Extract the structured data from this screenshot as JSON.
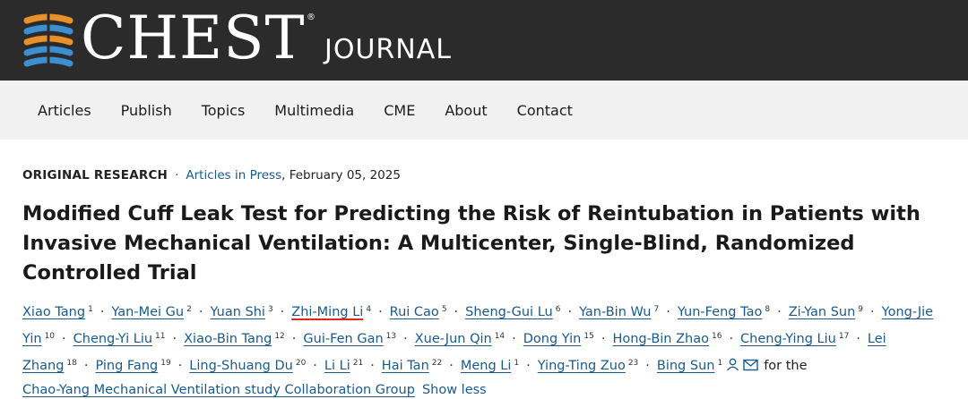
{
  "header": {
    "logo_main": "CHEST",
    "logo_registered": "®",
    "logo_sub": "JOURNAL",
    "logo_icon": "chest-journal-logo-icon",
    "colors": {
      "bar": "#2b2b2b",
      "blue": "#3d8fd0",
      "orange": "#e8902a"
    }
  },
  "nav": {
    "items": [
      "Articles",
      "Publish",
      "Topics",
      "Multimedia",
      "CME",
      "About",
      "Contact"
    ]
  },
  "meta": {
    "type": "ORIGINAL RESEARCH",
    "separator": "·",
    "section": "Articles in Press",
    "date": ", February 05, 2025"
  },
  "title": "Modified Cuff Leak Test for Predicting the Risk of Reintubation in Patients with Invasive Mechanical Ventilation: A Multicenter, Single-Blind, Randomized Controlled Trial",
  "authors": [
    {
      "name": "Xiao Tang",
      "sup": "1"
    },
    {
      "name": "Yan-Mei Gu",
      "sup": "2"
    },
    {
      "name": "Yuan Shi",
      "sup": "3"
    },
    {
      "name": "Zhi-Ming Li",
      "sup": "4",
      "highlight": true
    },
    {
      "name": "Rui Cao",
      "sup": "5"
    },
    {
      "name": "Sheng-Gui Lu",
      "sup": "6"
    },
    {
      "name": "Yan-Bin Wu",
      "sup": "7"
    },
    {
      "name": "Yun-Feng Tao",
      "sup": "8"
    },
    {
      "name": "Zi-Yan Sun",
      "sup": "9"
    },
    {
      "name": "Yong-Jie Yin",
      "sup": "10"
    },
    {
      "name": "Cheng-Yi Liu",
      "sup": "11"
    },
    {
      "name": "Xiao-Bin Tang",
      "sup": "12"
    },
    {
      "name": "Gui-Fen Gan",
      "sup": "13"
    },
    {
      "name": "Xue-Jun Qin",
      "sup": "14"
    },
    {
      "name": "Dong Yin",
      "sup": "15"
    },
    {
      "name": "Hong-Bin Zhao",
      "sup": "16"
    },
    {
      "name": "Cheng-Ying Liu",
      "sup": "17"
    },
    {
      "name": "Lei Zhang",
      "sup": "18"
    },
    {
      "name": "Ping Fang",
      "sup": "19"
    },
    {
      "name": "Ling-Shuang Du",
      "sup": "20"
    },
    {
      "name": "Li Li",
      "sup": "21"
    },
    {
      "name": "Hai Tan",
      "sup": "22"
    },
    {
      "name": "Meng Li",
      "sup": "1"
    },
    {
      "name": "Ying-Ting Zuo",
      "sup": "23"
    },
    {
      "name": "Bing Sun",
      "sup": "1",
      "icons": [
        "person-icon",
        "envelope-icon"
      ]
    }
  ],
  "authors_tail": {
    "for_the": "for the",
    "group": "Chao-Yang Mechanical Ventilation study Collaboration Group",
    "show_less": "Show less"
  }
}
